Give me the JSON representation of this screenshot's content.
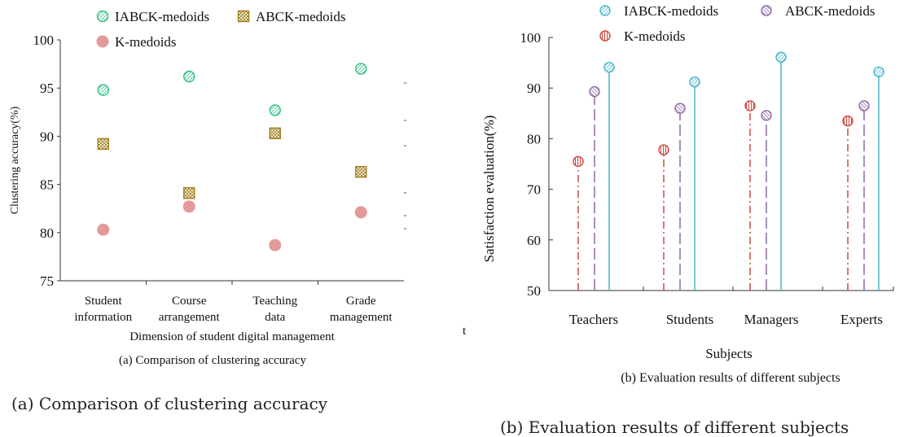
{
  "captions": {
    "left": "(a) Comparison of clustering accuracy",
    "right": "(b) Evaluation results of different subjects"
  },
  "stray_mark": "t",
  "colors": {
    "iabck": "#2fbf7f",
    "iabck_right": "#4ab5cc",
    "abck": "#a07d1c",
    "abck_right": "#8e6aa6",
    "kmed_left": "#e29a98",
    "kmed_right": "#cc4a40"
  },
  "chart_data": [
    {
      "type": "scatter",
      "title": "(a) Comparison of clustering accuracy",
      "xlabel": "Dimension of student digital management",
      "ylabel": "Clustering accuracy(%)",
      "ylim": [
        75,
        100
      ],
      "yticks": [
        75,
        80,
        85,
        90,
        95,
        100
      ],
      "categories": [
        [
          "Student",
          "information"
        ],
        [
          "Course",
          "arrangement"
        ],
        [
          "Teaching",
          "data"
        ],
        [
          "Grade",
          "management"
        ]
      ],
      "legend_placement": "top",
      "series": [
        {
          "name": "IABCK-medoids",
          "marker": "hatched-circle",
          "values": [
            94.8,
            96.2,
            92.7,
            97.0
          ]
        },
        {
          "name": "ABCK-medoids",
          "marker": "hatched-square",
          "values": [
            89.2,
            84.1,
            90.3,
            86.3
          ]
        },
        {
          "name": "K-medoids",
          "marker": "filled-circle",
          "values": [
            80.3,
            82.7,
            78.7,
            82.1
          ]
        }
      ]
    },
    {
      "type": "stem",
      "title": "(b) Evaluation results of different subjects",
      "xlabel": "Subjects",
      "ylabel": "Satisfaction evaluation(%)",
      "ylim": [
        50,
        100
      ],
      "yticks": [
        50,
        60,
        70,
        80,
        90,
        100
      ],
      "categories": [
        "Teachers",
        "Students",
        "Managers",
        "Experts"
      ],
      "legend_placement": "top",
      "series": [
        {
          "name": "K-medoids",
          "line": "dash-dot",
          "values": [
            75.5,
            77.8,
            86.5,
            83.5
          ]
        },
        {
          "name": "ABCK-medoids",
          "line": "dashed",
          "values": [
            89.3,
            86.0,
            84.6,
            86.5
          ]
        },
        {
          "name": "IABCK-medoids",
          "line": "solid",
          "values": [
            94.1,
            91.2,
            96.1,
            93.2
          ]
        }
      ]
    }
  ]
}
